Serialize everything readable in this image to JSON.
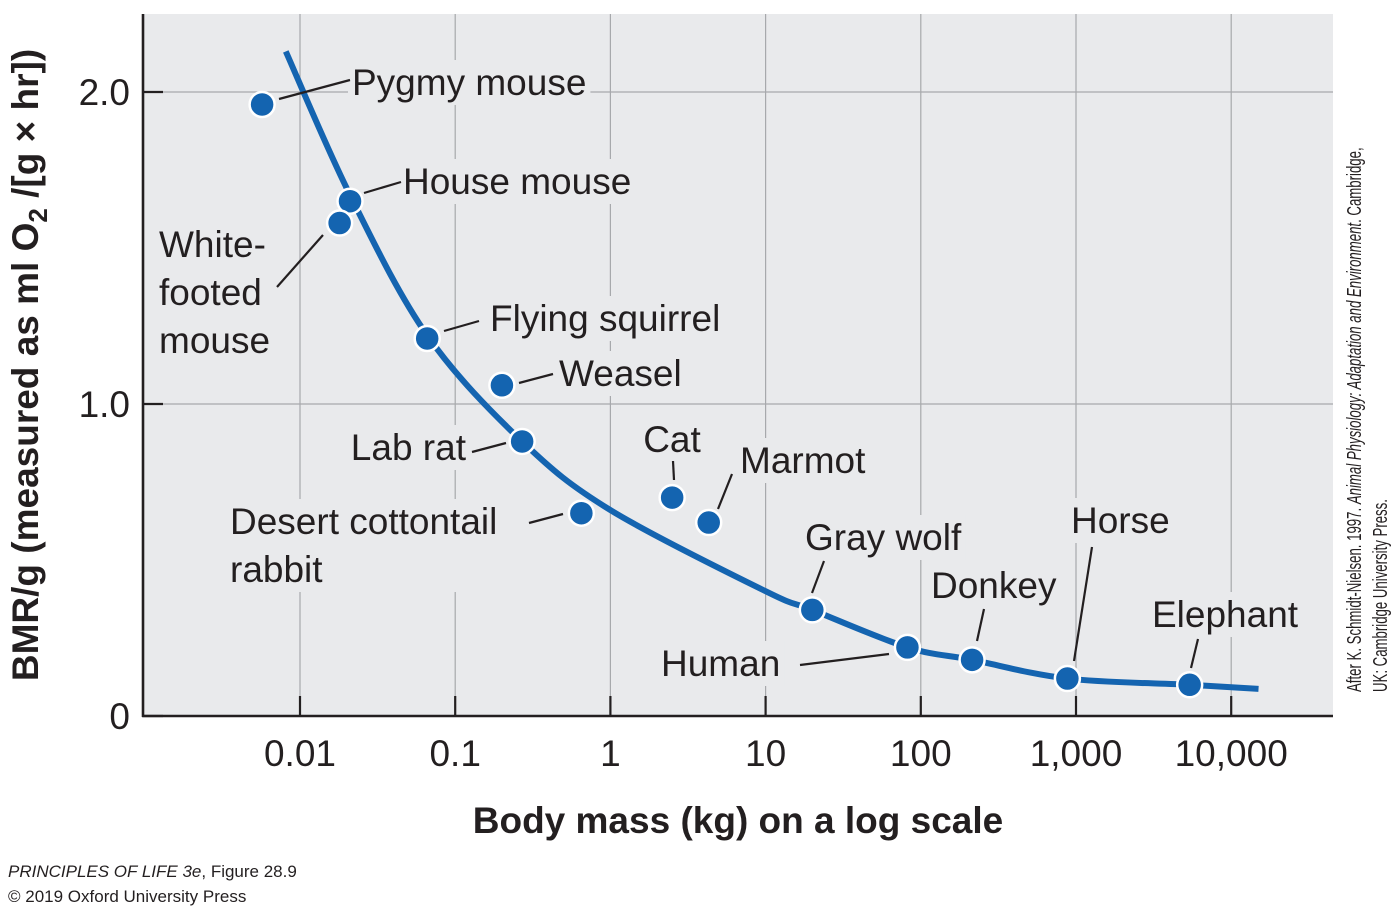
{
  "chart_data": {
    "type": "scatter",
    "title": "",
    "xlabel": "Body mass (kg) on a log scale",
    "ylabel_parts": {
      "before": "BMR/g (measured as ml O",
      "subscript": "2",
      "after": " /[g × hr])"
    },
    "ylabel": "BMR/g (measured as ml O2 /[g × hr])",
    "x_scale": "log",
    "xlim": [
      0.0011,
      50000
    ],
    "ylim": [
      0,
      2.25
    ],
    "x_ticks": [
      {
        "value": 0.01,
        "label": "0.01"
      },
      {
        "value": 0.1,
        "label": "0.1"
      },
      {
        "value": 1,
        "label": "1"
      },
      {
        "value": 10,
        "label": "10"
      },
      {
        "value": 100,
        "label": "100"
      },
      {
        "value": 1000,
        "label": "1,000"
      },
      {
        "value": 10000,
        "label": "10,000"
      }
    ],
    "y_ticks": [
      {
        "value": 0,
        "label": "0"
      },
      {
        "value": 1.0,
        "label": "1.0"
      },
      {
        "value": 2.0,
        "label": "2.0"
      }
    ],
    "grid": true,
    "points": [
      {
        "name": "Pygmy mouse",
        "label_lines": [
          "Pygmy mouse"
        ],
        "x": 0.0057,
        "y": 1.96
      },
      {
        "name": "House mouse",
        "label_lines": [
          "House mouse"
        ],
        "x": 0.021,
        "y": 1.65
      },
      {
        "name": "White-footed mouse",
        "label_lines": [
          "White-",
          "footed",
          "mouse"
        ],
        "x": 0.018,
        "y": 1.58
      },
      {
        "name": "Flying squirrel",
        "label_lines": [
          "Flying squirrel"
        ],
        "x": 0.066,
        "y": 1.21
      },
      {
        "name": "Weasel",
        "label_lines": [
          "Weasel"
        ],
        "x": 0.2,
        "y": 1.06
      },
      {
        "name": "Lab rat",
        "label_lines": [
          "Lab rat"
        ],
        "x": 0.27,
        "y": 0.88
      },
      {
        "name": "Desert cottontail rabbit",
        "label_lines": [
          "Desert cottontail",
          "rabbit"
        ],
        "x": 0.65,
        "y": 0.65
      },
      {
        "name": "Cat",
        "label_lines": [
          "Cat"
        ],
        "x": 2.5,
        "y": 0.7
      },
      {
        "name": "Marmot",
        "label_lines": [
          "Marmot"
        ],
        "x": 4.3,
        "y": 0.62
      },
      {
        "name": "Gray wolf",
        "label_lines": [
          "Gray wolf"
        ],
        "x": 20,
        "y": 0.34
      },
      {
        "name": "Human",
        "label_lines": [
          "Human"
        ],
        "x": 82,
        "y": 0.22
      },
      {
        "name": "Donkey",
        "label_lines": [
          "Donkey"
        ],
        "x": 214,
        "y": 0.18
      },
      {
        "name": "Horse",
        "label_lines": [
          "Horse"
        ],
        "x": 880,
        "y": 0.12
      },
      {
        "name": "Elephant",
        "label_lines": [
          "Elephant"
        ],
        "x": 5400,
        "y": 0.1
      }
    ],
    "trend_curve": {
      "x": [
        0.0081,
        0.021,
        0.066,
        0.27,
        1.0,
        10,
        20,
        82,
        214,
        880,
        5400,
        15000
      ],
      "y": [
        2.13,
        1.67,
        1.22,
        0.88,
        0.66,
        0.4,
        0.34,
        0.22,
        0.18,
        0.12,
        0.1,
        0.087
      ]
    },
    "colors": {
      "series": "#1464b0",
      "plot_background": "#e9eaec",
      "grid": "#a7a9ac",
      "axis": "#231f20",
      "text": "#231f20"
    }
  },
  "credits": {
    "book_title": "PRINCIPLES OF LIFE 3e",
    "figure": ", Figure 28.9",
    "copyright": "© 2019 Oxford University Press"
  },
  "attribution": {
    "line1_pre": "After K. Schmidt-Nielsen. 1997. ",
    "line1_italic": "Animal Physiology: Adaptation and Environment",
    "line1_post": ". Cambridge,",
    "line2": "UK: Cambridge University Press."
  }
}
